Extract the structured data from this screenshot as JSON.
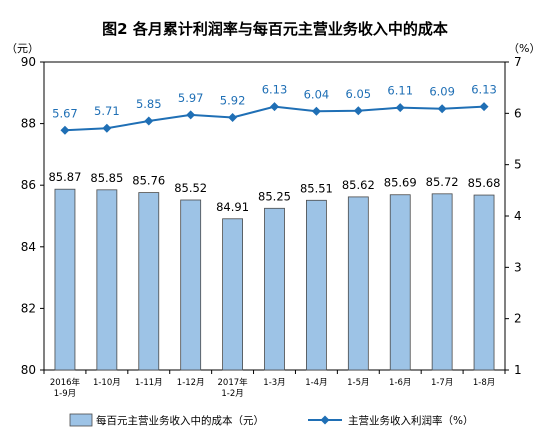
{
  "chart_data": {
    "type": "bar",
    "title": "图2  各月累计利润率与每百元主营业务收入中的成本",
    "left_unit": "（元）",
    "right_unit": "（%）",
    "categories": [
      [
        "2016年",
        "1-9月"
      ],
      [
        "1-10月"
      ],
      [
        "1-11月"
      ],
      [
        "1-12月"
      ],
      [
        "2017年",
        "1-2月"
      ],
      [
        "1-3月"
      ],
      [
        "1-4月"
      ],
      [
        "1-5月"
      ],
      [
        "1-6月"
      ],
      [
        "1-7月"
      ],
      [
        "1-8月"
      ]
    ],
    "series": [
      {
        "name": "每百元主营业务收入中的成本（元）",
        "type": "bar",
        "axis": "left",
        "color": "#9dc3e6",
        "values": [
          85.87,
          85.85,
          85.76,
          85.52,
          84.91,
          85.25,
          85.51,
          85.62,
          85.69,
          85.72,
          85.68
        ],
        "labels": [
          "85.87",
          "85.85",
          "85.76",
          "85.52",
          "84.91",
          "85.25",
          "85.51",
          "85.62",
          "85.69",
          "85.72",
          "85.68"
        ]
      },
      {
        "name": "主营业务收入利润率（%）",
        "type": "line",
        "axis": "right",
        "color": "#1f6fb5",
        "values": [
          5.67,
          5.71,
          5.85,
          5.97,
          5.92,
          6.13,
          6.04,
          6.05,
          6.11,
          6.09,
          6.13
        ],
        "labels": [
          "5.67",
          "5.71",
          "5.85",
          "5.97",
          "5.92",
          "6.13",
          "6.04",
          "6.05",
          "6.11",
          "6.09",
          "6.13"
        ]
      }
    ],
    "left_axis": {
      "min": 80,
      "max": 90,
      "ticks": [
        "80",
        "82",
        "84",
        "86",
        "88",
        "90"
      ]
    },
    "right_axis": {
      "min": 1,
      "max": 7,
      "ticks": [
        "1",
        "2",
        "3",
        "4",
        "5",
        "6",
        "7"
      ]
    },
    "grid": false,
    "legend_position": "bottom"
  }
}
